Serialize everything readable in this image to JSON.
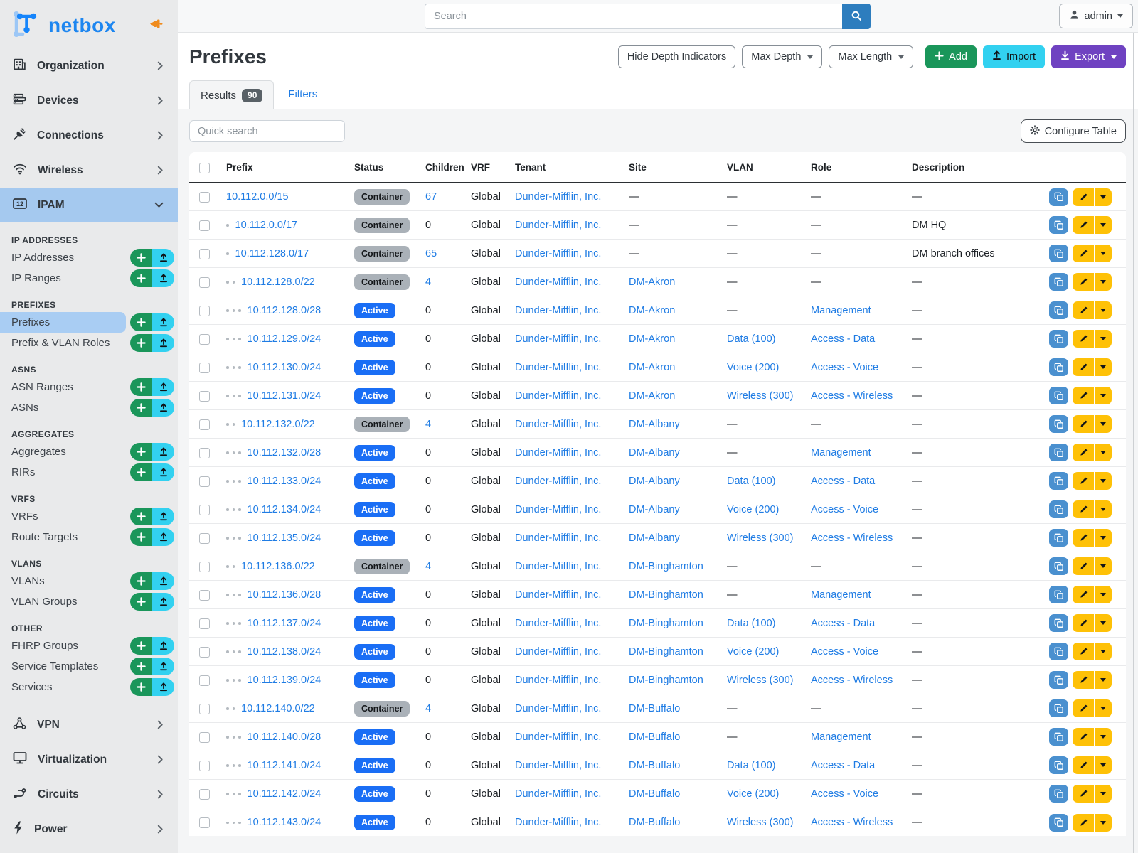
{
  "brand": {
    "name": "netbox"
  },
  "topbar": {
    "search_placeholder": "Search",
    "user": "admin"
  },
  "sidebar": {
    "top_items": [
      {
        "label": "Organization",
        "icon": "building-icon",
        "expanded": false,
        "active": false
      },
      {
        "label": "Devices",
        "icon": "server-icon",
        "expanded": false,
        "active": false
      },
      {
        "label": "Connections",
        "icon": "plug-icon",
        "expanded": false,
        "active": false
      },
      {
        "label": "Wireless",
        "icon": "wifi-icon",
        "expanded": false,
        "active": false
      },
      {
        "label": "IPAM",
        "icon": "counter-icon",
        "expanded": true,
        "active": true
      }
    ],
    "ipam_sections": [
      {
        "header": "IP ADDRESSES",
        "items": [
          "IP Addresses",
          "IP Ranges"
        ],
        "active_item": ""
      },
      {
        "header": "PREFIXES",
        "items": [
          "Prefixes",
          "Prefix & VLAN Roles"
        ],
        "active_item": "Prefixes"
      },
      {
        "header": "ASNS",
        "items": [
          "ASN Ranges",
          "ASNs"
        ],
        "active_item": ""
      },
      {
        "header": "AGGREGATES",
        "items": [
          "Aggregates",
          "RIRs"
        ],
        "active_item": ""
      },
      {
        "header": "VRFS",
        "items": [
          "VRFs",
          "Route Targets"
        ],
        "active_item": ""
      },
      {
        "header": "VLANS",
        "items": [
          "VLANs",
          "VLAN Groups"
        ],
        "active_item": ""
      },
      {
        "header": "OTHER",
        "items": [
          "FHRP Groups",
          "Service Templates",
          "Services"
        ],
        "active_item": ""
      }
    ],
    "bottom_items": [
      {
        "label": "VPN",
        "icon": "share-nodes-icon"
      },
      {
        "label": "Virtualization",
        "icon": "monitor-icon"
      },
      {
        "label": "Circuits",
        "icon": "circuit-icon"
      },
      {
        "label": "Power",
        "icon": "bolt-icon"
      }
    ]
  },
  "page": {
    "title": "Prefixes",
    "buttons": {
      "hide_depth": "Hide Depth Indicators",
      "max_depth": "Max Depth",
      "max_length": "Max Length",
      "add": "Add",
      "import": "Import",
      "export": "Export"
    },
    "tabs": {
      "results_label": "Results",
      "results_badge": "90",
      "filters_label": "Filters"
    },
    "quick_search_placeholder": "Quick search",
    "configure_table": "Configure Table"
  },
  "table": {
    "columns": [
      "Prefix",
      "Status",
      "Children",
      "VRF",
      "Tenant",
      "Site",
      "VLAN",
      "Role",
      "Description"
    ],
    "rows": [
      {
        "prefix": "10.112.0.0/15",
        "depth": 0,
        "status": "Container",
        "children": "67",
        "children_link": true,
        "vrf": "Global",
        "tenant": "Dunder-Mifflin, Inc.",
        "site": "—",
        "vlan": "—",
        "role": "—",
        "description": "—"
      },
      {
        "prefix": "10.112.0.0/17",
        "depth": 1,
        "status": "Container",
        "children": "0",
        "children_link": false,
        "vrf": "Global",
        "tenant": "Dunder-Mifflin, Inc.",
        "site": "—",
        "vlan": "—",
        "role": "—",
        "description": "DM HQ"
      },
      {
        "prefix": "10.112.128.0/17",
        "depth": 1,
        "status": "Container",
        "children": "65",
        "children_link": true,
        "vrf": "Global",
        "tenant": "Dunder-Mifflin, Inc.",
        "site": "—",
        "vlan": "—",
        "role": "—",
        "description": "DM branch offices"
      },
      {
        "prefix": "10.112.128.0/22",
        "depth": 2,
        "status": "Container",
        "children": "4",
        "children_link": true,
        "vrf": "Global",
        "tenant": "Dunder-Mifflin, Inc.",
        "site": "DM-Akron",
        "vlan": "—",
        "role": "—",
        "description": "—"
      },
      {
        "prefix": "10.112.128.0/28",
        "depth": 3,
        "status": "Active",
        "children": "0",
        "children_link": false,
        "vrf": "Global",
        "tenant": "Dunder-Mifflin, Inc.",
        "site": "DM-Akron",
        "vlan": "—",
        "role": "Management",
        "description": "—"
      },
      {
        "prefix": "10.112.129.0/24",
        "depth": 3,
        "status": "Active",
        "children": "0",
        "children_link": false,
        "vrf": "Global",
        "tenant": "Dunder-Mifflin, Inc.",
        "site": "DM-Akron",
        "vlan": "Data (100)",
        "role": "Access - Data",
        "description": "—"
      },
      {
        "prefix": "10.112.130.0/24",
        "depth": 3,
        "status": "Active",
        "children": "0",
        "children_link": false,
        "vrf": "Global",
        "tenant": "Dunder-Mifflin, Inc.",
        "site": "DM-Akron",
        "vlan": "Voice (200)",
        "role": "Access - Voice",
        "description": "—"
      },
      {
        "prefix": "10.112.131.0/24",
        "depth": 3,
        "status": "Active",
        "children": "0",
        "children_link": false,
        "vrf": "Global",
        "tenant": "Dunder-Mifflin, Inc.",
        "site": "DM-Akron",
        "vlan": "Wireless (300)",
        "role": "Access - Wireless",
        "description": "—"
      },
      {
        "prefix": "10.112.132.0/22",
        "depth": 2,
        "status": "Container",
        "children": "4",
        "children_link": true,
        "vrf": "Global",
        "tenant": "Dunder-Mifflin, Inc.",
        "site": "DM-Albany",
        "vlan": "—",
        "role": "—",
        "description": "—"
      },
      {
        "prefix": "10.112.132.0/28",
        "depth": 3,
        "status": "Active",
        "children": "0",
        "children_link": false,
        "vrf": "Global",
        "tenant": "Dunder-Mifflin, Inc.",
        "site": "DM-Albany",
        "vlan": "—",
        "role": "Management",
        "description": "—"
      },
      {
        "prefix": "10.112.133.0/24",
        "depth": 3,
        "status": "Active",
        "children": "0",
        "children_link": false,
        "vrf": "Global",
        "tenant": "Dunder-Mifflin, Inc.",
        "site": "DM-Albany",
        "vlan": "Data (100)",
        "role": "Access - Data",
        "description": "—"
      },
      {
        "prefix": "10.112.134.0/24",
        "depth": 3,
        "status": "Active",
        "children": "0",
        "children_link": false,
        "vrf": "Global",
        "tenant": "Dunder-Mifflin, Inc.",
        "site": "DM-Albany",
        "vlan": "Voice (200)",
        "role": "Access - Voice",
        "description": "—"
      },
      {
        "prefix": "10.112.135.0/24",
        "depth": 3,
        "status": "Active",
        "children": "0",
        "children_link": false,
        "vrf": "Global",
        "tenant": "Dunder-Mifflin, Inc.",
        "site": "DM-Albany",
        "vlan": "Wireless (300)",
        "role": "Access - Wireless",
        "description": "—"
      },
      {
        "prefix": "10.112.136.0/22",
        "depth": 2,
        "status": "Container",
        "children": "4",
        "children_link": true,
        "vrf": "Global",
        "tenant": "Dunder-Mifflin, Inc.",
        "site": "DM-Binghamton",
        "vlan": "—",
        "role": "—",
        "description": "—"
      },
      {
        "prefix": "10.112.136.0/28",
        "depth": 3,
        "status": "Active",
        "children": "0",
        "children_link": false,
        "vrf": "Global",
        "tenant": "Dunder-Mifflin, Inc.",
        "site": "DM-Binghamton",
        "vlan": "—",
        "role": "Management",
        "description": "—"
      },
      {
        "prefix": "10.112.137.0/24",
        "depth": 3,
        "status": "Active",
        "children": "0",
        "children_link": false,
        "vrf": "Global",
        "tenant": "Dunder-Mifflin, Inc.",
        "site": "DM-Binghamton",
        "vlan": "Data (100)",
        "role": "Access - Data",
        "description": "—"
      },
      {
        "prefix": "10.112.138.0/24",
        "depth": 3,
        "status": "Active",
        "children": "0",
        "children_link": false,
        "vrf": "Global",
        "tenant": "Dunder-Mifflin, Inc.",
        "site": "DM-Binghamton",
        "vlan": "Voice (200)",
        "role": "Access - Voice",
        "description": "—"
      },
      {
        "prefix": "10.112.139.0/24",
        "depth": 3,
        "status": "Active",
        "children": "0",
        "children_link": false,
        "vrf": "Global",
        "tenant": "Dunder-Mifflin, Inc.",
        "site": "DM-Binghamton",
        "vlan": "Wireless (300)",
        "role": "Access - Wireless",
        "description": "—"
      },
      {
        "prefix": "10.112.140.0/22",
        "depth": 2,
        "status": "Container",
        "children": "4",
        "children_link": true,
        "vrf": "Global",
        "tenant": "Dunder-Mifflin, Inc.",
        "site": "DM-Buffalo",
        "vlan": "—",
        "role": "—",
        "description": "—"
      },
      {
        "prefix": "10.112.140.0/28",
        "depth": 3,
        "status": "Active",
        "children": "0",
        "children_link": false,
        "vrf": "Global",
        "tenant": "Dunder-Mifflin, Inc.",
        "site": "DM-Buffalo",
        "vlan": "—",
        "role": "Management",
        "description": "—"
      },
      {
        "prefix": "10.112.141.0/24",
        "depth": 3,
        "status": "Active",
        "children": "0",
        "children_link": false,
        "vrf": "Global",
        "tenant": "Dunder-Mifflin, Inc.",
        "site": "DM-Buffalo",
        "vlan": "Data (100)",
        "role": "Access - Data",
        "description": "—"
      },
      {
        "prefix": "10.112.142.0/24",
        "depth": 3,
        "status": "Active",
        "children": "0",
        "children_link": false,
        "vrf": "Global",
        "tenant": "Dunder-Mifflin, Inc.",
        "site": "DM-Buffalo",
        "vlan": "Voice (200)",
        "role": "Access - Voice",
        "description": "—"
      },
      {
        "prefix": "10.112.143.0/24",
        "depth": 3,
        "status": "Active",
        "children": "0",
        "children_link": false,
        "vrf": "Global",
        "tenant": "Dunder-Mifflin, Inc.",
        "site": "DM-Buffalo",
        "vlan": "Wireless (300)",
        "role": "Access - Wireless",
        "description": "—"
      }
    ]
  },
  "colors": {
    "brand_blue": "#1d86f0",
    "link_blue": "#1f7ce4",
    "active_badge": "#1a6ef5",
    "container_badge": "#aab1b8",
    "green": "#1a965a",
    "cyan": "#32d1f0",
    "purple": "#6f42c1",
    "warning_yellow": "#fec107",
    "copy_blue": "#4a90cf",
    "sidebar_bg": "#e9eaeb",
    "sidebar_active": "#a5c9ef",
    "pin_orange": "#ef8b1d"
  }
}
